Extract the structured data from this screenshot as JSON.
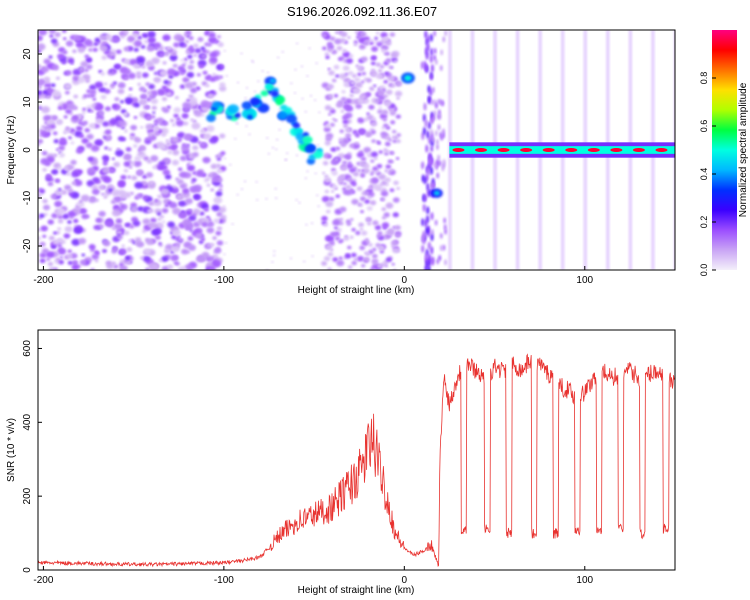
{
  "title": "S196.2026.092.11.36.E07",
  "colors": {
    "snr_line": "#e8322f",
    "scatter_violet": "#8a2be2",
    "colormap": [
      "#f4f0fa",
      "#c9a4f5",
      "#9b4dff",
      "#3a00ff",
      "#0030ff",
      "#00b8ff",
      "#00ffe0",
      "#00ff40",
      "#b0ff00",
      "#ffe000",
      "#ff7000",
      "#ff0000",
      "#ff0080"
    ]
  },
  "chart_data": [
    {
      "type": "heatmap",
      "title": "",
      "xlabel": "Height of straight line (km)",
      "ylabel": "Frequency (Hz)",
      "xlim": [
        -203,
        150
      ],
      "ylim": [
        -25,
        25
      ],
      "xticks": [
        -200,
        -100,
        0,
        100
      ],
      "yticks": [
        -20,
        -10,
        0,
        10,
        20
      ],
      "colorbar": {
        "label": "Normalized spectral amplitude",
        "range": [
          0.0,
          1.0
        ],
        "ticks": [
          "0.0",
          "0.2",
          "0.4",
          "0.6",
          "0.8"
        ],
        "tick_values": [
          0.0,
          0.2,
          0.4,
          0.6,
          0.8
        ]
      },
      "features": [
        {
          "name": "noise-region",
          "x_range": [
            -203,
            -100
          ],
          "f_range": [
            -25,
            25
          ],
          "amplitude": 0.12
        },
        {
          "name": "descending-arc",
          "points": [
            [
              -105,
              8
            ],
            [
              -95,
              7.5
            ],
            [
              -85,
              8
            ],
            [
              -80,
              10
            ],
            [
              -75,
              13
            ],
            [
              -70,
              11
            ],
            [
              -65,
              8
            ],
            [
              -60,
              5
            ],
            [
              -55,
              2
            ],
            [
              -50,
              -1
            ]
          ],
          "amplitude": 0.45
        },
        {
          "name": "spot-upper",
          "x": 2,
          "f": 15,
          "amplitude": 0.5
        },
        {
          "name": "spot-lower",
          "x": 18,
          "f": -9,
          "amplitude": 0.45
        },
        {
          "name": "carrier-line",
          "x_range": [
            25,
            150
          ],
          "f": 0,
          "amplitude": 0.95
        }
      ]
    },
    {
      "type": "line",
      "title": "",
      "xlabel": "Height of straight line (km)",
      "ylabel": "SNR (10 * v/v)",
      "xlim": [
        -203,
        150
      ],
      "ylim": [
        0,
        650
      ],
      "xticks": [
        -200,
        -100,
        0,
        100
      ],
      "yticks": [
        0,
        200,
        400,
        600
      ],
      "series": [
        {
          "name": "SNR",
          "x": [
            -203,
            -180,
            -160,
            -140,
            -120,
            -100,
            -90,
            -80,
            -75,
            -70,
            -65,
            -60,
            -55,
            -50,
            -45,
            -40,
            -35,
            -30,
            -25,
            -22,
            -20,
            -17,
            -15,
            -12,
            -10,
            -5,
            0,
            5,
            10,
            15,
            19,
            20,
            22,
            25,
            30,
            35,
            40,
            45,
            50,
            55,
            60,
            65,
            70,
            75,
            80,
            85,
            90,
            95,
            100,
            105,
            110,
            115,
            120,
            125,
            130,
            135,
            140,
            145,
            150
          ],
          "y": [
            20,
            18,
            16,
            15,
            17,
            20,
            25,
            35,
            60,
            90,
            110,
            130,
            140,
            150,
            160,
            170,
            200,
            230,
            260,
            300,
            330,
            350,
            300,
            250,
            200,
            100,
            60,
            40,
            50,
            70,
            10,
            350,
            520,
            450,
            530,
            560,
            540,
            520,
            550,
            540,
            560,
            540,
            570,
            560,
            530,
            500,
            490,
            470,
            480,
            520,
            540,
            520,
            530,
            540,
            520,
            530,
            540,
            520,
            500
          ],
          "dips": [
            {
              "x": 33,
              "y": 110
            },
            {
              "x": 46,
              "y": 110
            },
            {
              "x": 58,
              "y": 100
            },
            {
              "x": 72,
              "y": 100
            },
            {
              "x": 84,
              "y": 100
            },
            {
              "x": 96,
              "y": 110
            },
            {
              "x": 108,
              "y": 110
            },
            {
              "x": 120,
              "y": 110
            },
            {
              "x": 132,
              "y": 100
            },
            {
              "x": 145,
              "y": 110
            }
          ]
        }
      ]
    }
  ]
}
